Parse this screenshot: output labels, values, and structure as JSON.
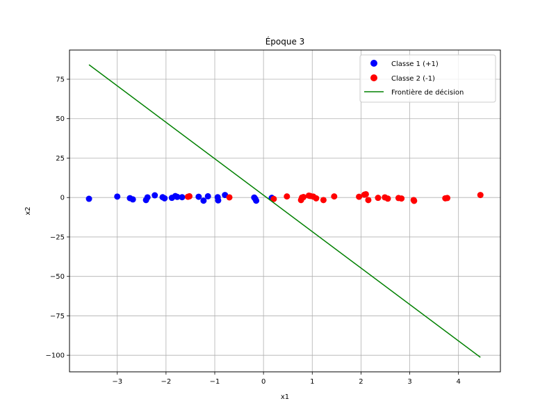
{
  "chart_data": {
    "type": "scatter",
    "title": "Époque 3",
    "xlabel": "x1",
    "ylabel": "x2",
    "xlim": [
      -3.98,
      4.86
    ],
    "ylim": [
      -110.5,
      93.5
    ],
    "xticks": [
      -3,
      -2,
      -1,
      0,
      1,
      2,
      3,
      4
    ],
    "yticks": [
      -100,
      -75,
      -50,
      -25,
      0,
      25,
      50,
      75
    ],
    "xtick_labels": [
      "−3",
      "−2",
      "−1",
      "0",
      "1",
      "2",
      "3",
      "4"
    ],
    "ytick_labels": [
      "−100",
      "−75",
      "−50",
      "−25",
      "0",
      "25",
      "50",
      "75"
    ],
    "grid": true,
    "legend_position": "top-right",
    "series": [
      {
        "name": "Classe 1 (+1)",
        "kind": "scatter",
        "color": "#0000ff",
        "points": [
          [
            -3.58,
            -0.8
          ],
          [
            -3.0,
            0.6
          ],
          [
            -2.74,
            -0.4
          ],
          [
            -2.68,
            -1.2
          ],
          [
            -2.41,
            -1.6
          ],
          [
            -2.38,
            0.1
          ],
          [
            -2.23,
            1.4
          ],
          [
            -2.07,
            0.2
          ],
          [
            -2.03,
            -0.5
          ],
          [
            -1.88,
            -0.2
          ],
          [
            -1.81,
            0.9
          ],
          [
            -1.77,
            0.4
          ],
          [
            -1.67,
            0.2
          ],
          [
            -1.33,
            0.5
          ],
          [
            -1.23,
            -2.0
          ],
          [
            -1.14,
            0.8
          ],
          [
            -0.94,
            0.2
          ],
          [
            -0.93,
            -1.8
          ],
          [
            -0.79,
            1.6
          ],
          [
            -0.19,
            0.0
          ],
          [
            -0.17,
            -0.8
          ],
          [
            -0.15,
            -2.0
          ],
          [
            0.17,
            -0.2
          ]
        ]
      },
      {
        "name": "Classe 2 (-1)",
        "kind": "scatter",
        "color": "#ff0000",
        "points": [
          [
            -1.55,
            0.5
          ],
          [
            -1.52,
            0.8
          ],
          [
            -0.7,
            0.1
          ],
          [
            0.21,
            -0.9
          ],
          [
            0.48,
            0.7
          ],
          [
            0.77,
            -1.6
          ],
          [
            0.79,
            0.0
          ],
          [
            0.82,
            0.3
          ],
          [
            0.93,
            1.2
          ],
          [
            0.96,
            1.0
          ],
          [
            1.02,
            0.6
          ],
          [
            1.08,
            -0.5
          ],
          [
            1.23,
            -1.6
          ],
          [
            1.45,
            0.7
          ],
          [
            1.96,
            0.5
          ],
          [
            2.07,
            1.8
          ],
          [
            2.1,
            2.1
          ],
          [
            2.15,
            -1.6
          ],
          [
            2.35,
            -0.2
          ],
          [
            2.49,
            0.1
          ],
          [
            2.55,
            -0.7
          ],
          [
            2.77,
            -0.3
          ],
          [
            2.83,
            -0.6
          ],
          [
            3.08,
            -1.6
          ],
          [
            3.09,
            -2.1
          ],
          [
            3.73,
            -0.5
          ],
          [
            3.77,
            -0.3
          ],
          [
            4.45,
            1.6
          ]
        ]
      },
      {
        "name": "Frontière de décision",
        "kind": "line",
        "color": "#008000",
        "points": [
          [
            -3.58,
            84.2
          ],
          [
            4.45,
            -101.3
          ]
        ]
      }
    ]
  }
}
